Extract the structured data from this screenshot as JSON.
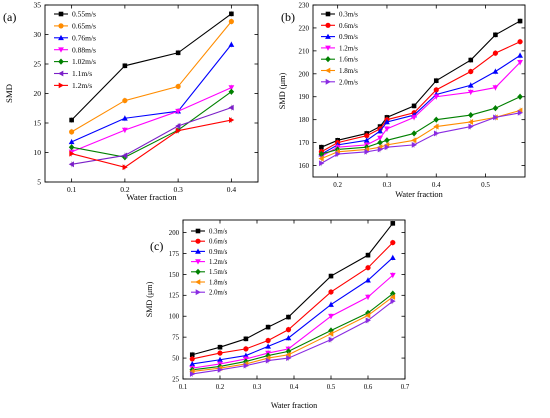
{
  "chart_data": [
    {
      "type": "line",
      "panel_label": "(a)",
      "xlabel": "Water fraction",
      "ylabel": "SMD",
      "xlim": [
        0.05,
        0.45
      ],
      "ylim": [
        5,
        35
      ],
      "x_ticks": [
        0.1,
        0.2,
        0.3,
        0.4
      ],
      "x_tick_labels": [
        "0.1",
        "0.2",
        "0.3",
        "0.4"
      ],
      "y_ticks": [
        5,
        10,
        15,
        20,
        25,
        30,
        35
      ],
      "y_tick_labels": [
        "5",
        "10",
        "15",
        "20",
        "25",
        "30",
        "35"
      ],
      "x": [
        0.1,
        0.2,
        0.3,
        0.4
      ],
      "legend_position": "top-left",
      "series": [
        {
          "name": "0.55m/s",
          "color": "#000000",
          "marker": "square",
          "values": [
            15.5,
            24.7,
            26.9,
            33.5
          ]
        },
        {
          "name": "0.65m/s",
          "color": "#ff8c00",
          "marker": "circle",
          "values": [
            13.5,
            18.8,
            21.2,
            32.2
          ]
        },
        {
          "name": "0.76m/s",
          "color": "#0000ff",
          "marker": "triangle-up",
          "values": [
            11.8,
            15.8,
            17.0,
            28.3
          ]
        },
        {
          "name": "0.88m/s",
          "color": "#ff00ff",
          "marker": "triangle-down",
          "values": [
            10.1,
            13.8,
            17.0,
            21.0
          ]
        },
        {
          "name": "1.02m/s",
          "color": "#008000",
          "marker": "diamond",
          "values": [
            10.9,
            9.2,
            13.8,
            20.3
          ]
        },
        {
          "name": "1.1m/s",
          "color": "#7b1fc8",
          "marker": "triangle-left",
          "values": [
            8.0,
            9.5,
            14.5,
            17.6
          ]
        },
        {
          "name": "1.2m/s",
          "color": "#ff0000",
          "marker": "triangle-right",
          "values": [
            9.8,
            7.5,
            13.7,
            15.5
          ]
        }
      ]
    },
    {
      "type": "line",
      "panel_label": "(b)",
      "xlabel": "Water fraction",
      "ylabel": "SMD (μm)",
      "xlim": [
        0.15,
        0.58
      ],
      "ylim": [
        155,
        230
      ],
      "x_ticks": [
        0.2,
        0.3,
        0.4,
        0.5
      ],
      "x_tick_labels": [
        "0.2",
        "0.3",
        "0.4",
        "0.5"
      ],
      "y_ticks": [
        160,
        170,
        180,
        190,
        200,
        210,
        220,
        230
      ],
      "y_tick_labels": [
        "160",
        "170",
        "180",
        "190",
        "200",
        "210",
        "220",
        "230"
      ],
      "x": [
        0.167,
        0.2,
        0.259,
        0.286,
        0.3,
        0.355,
        0.4,
        0.47,
        0.52,
        0.57
      ],
      "legend_position": "top-left",
      "series": [
        {
          "name": "0.3m/s",
          "color": "#000000",
          "marker": "square",
          "values": [
            168,
            171,
            174,
            177,
            181,
            186,
            197,
            206,
            217,
            223
          ]
        },
        {
          "name": "0.6m/s",
          "color": "#ff0000",
          "marker": "circle",
          "values": [
            166,
            170,
            173,
            176,
            180,
            183,
            193,
            201,
            209,
            214
          ]
        },
        {
          "name": "0.9m/s",
          "color": "#0000ff",
          "marker": "triangle-up",
          "values": [
            165,
            169,
            171,
            175,
            179,
            182,
            191,
            195,
            201,
            208
          ]
        },
        {
          "name": "1.2m/s",
          "color": "#ff00ff",
          "marker": "triangle-down",
          "values": [
            164,
            168,
            169,
            172,
            176,
            181,
            190,
            192,
            194,
            205
          ]
        },
        {
          "name": "1.6m/s",
          "color": "#008000",
          "marker": "diamond",
          "values": [
            165,
            167,
            168,
            170,
            171,
            174,
            180,
            182,
            185,
            190
          ]
        },
        {
          "name": "1.8m/s",
          "color": "#ff8c00",
          "marker": "triangle-left",
          "values": [
            163,
            166,
            167,
            168,
            169,
            171,
            177,
            179,
            181,
            184
          ]
        },
        {
          "name": "2.0m/s",
          "color": "#8a2be2",
          "marker": "triangle-right",
          "values": [
            161,
            165,
            166,
            167,
            168,
            169,
            174,
            177,
            181,
            183
          ]
        }
      ]
    },
    {
      "type": "line",
      "panel_label": "(c)",
      "xlabel": "Water fraction",
      "ylabel": "SMD (μm)",
      "xlim": [
        0.1,
        0.7
      ],
      "ylim": [
        25,
        215
      ],
      "x_ticks": [
        0.1,
        0.2,
        0.3,
        0.4,
        0.5,
        0.6,
        0.7
      ],
      "x_tick_labels": [
        "0.1",
        "0.2",
        "0.3",
        "0.4",
        "0.5",
        "0.6",
        "0.7"
      ],
      "y_ticks": [
        25,
        50,
        75,
        100,
        125,
        150,
        175,
        200
      ],
      "y_tick_labels": [
        "25",
        "50",
        "75",
        "100",
        "125",
        "150",
        "175",
        "200"
      ],
      "x": [
        0.125,
        0.2,
        0.27,
        0.33,
        0.385,
        0.5,
        0.6,
        0.667
      ],
      "legend_position": "top-left",
      "series": [
        {
          "name": "0.3m/s",
          "color": "#000000",
          "marker": "square",
          "values": [
            54,
            63,
            73,
            87,
            99,
            148,
            173,
            211
          ]
        },
        {
          "name": "0.6m/s",
          "color": "#ff0000",
          "marker": "circle",
          "values": [
            49,
            56,
            61,
            71,
            84,
            129,
            158,
            188
          ]
        },
        {
          "name": "0.9m/s",
          "color": "#0000ff",
          "marker": "triangle-up",
          "values": [
            43,
            48,
            53,
            64,
            74,
            114,
            143,
            170
          ]
        },
        {
          "name": "1.2m/s",
          "color": "#ff00ff",
          "marker": "triangle-down",
          "values": [
            38,
            43,
            49,
            56,
            61,
            100,
            123,
            149
          ]
        },
        {
          "name": "1.5m/s",
          "color": "#008000",
          "marker": "diamond",
          "values": [
            36,
            40,
            46,
            53,
            58,
            83,
            104,
            127
          ]
        },
        {
          "name": "1.8m/s",
          "color": "#ff8c00",
          "marker": "triangle-left",
          "values": [
            34,
            38,
            43,
            50,
            54,
            79,
            101,
            123
          ]
        },
        {
          "name": "2.0m/s",
          "color": "#8a2be2",
          "marker": "triangle-right",
          "values": [
            31,
            36,
            41,
            47,
            50,
            72,
            95,
            118
          ]
        }
      ]
    }
  ]
}
